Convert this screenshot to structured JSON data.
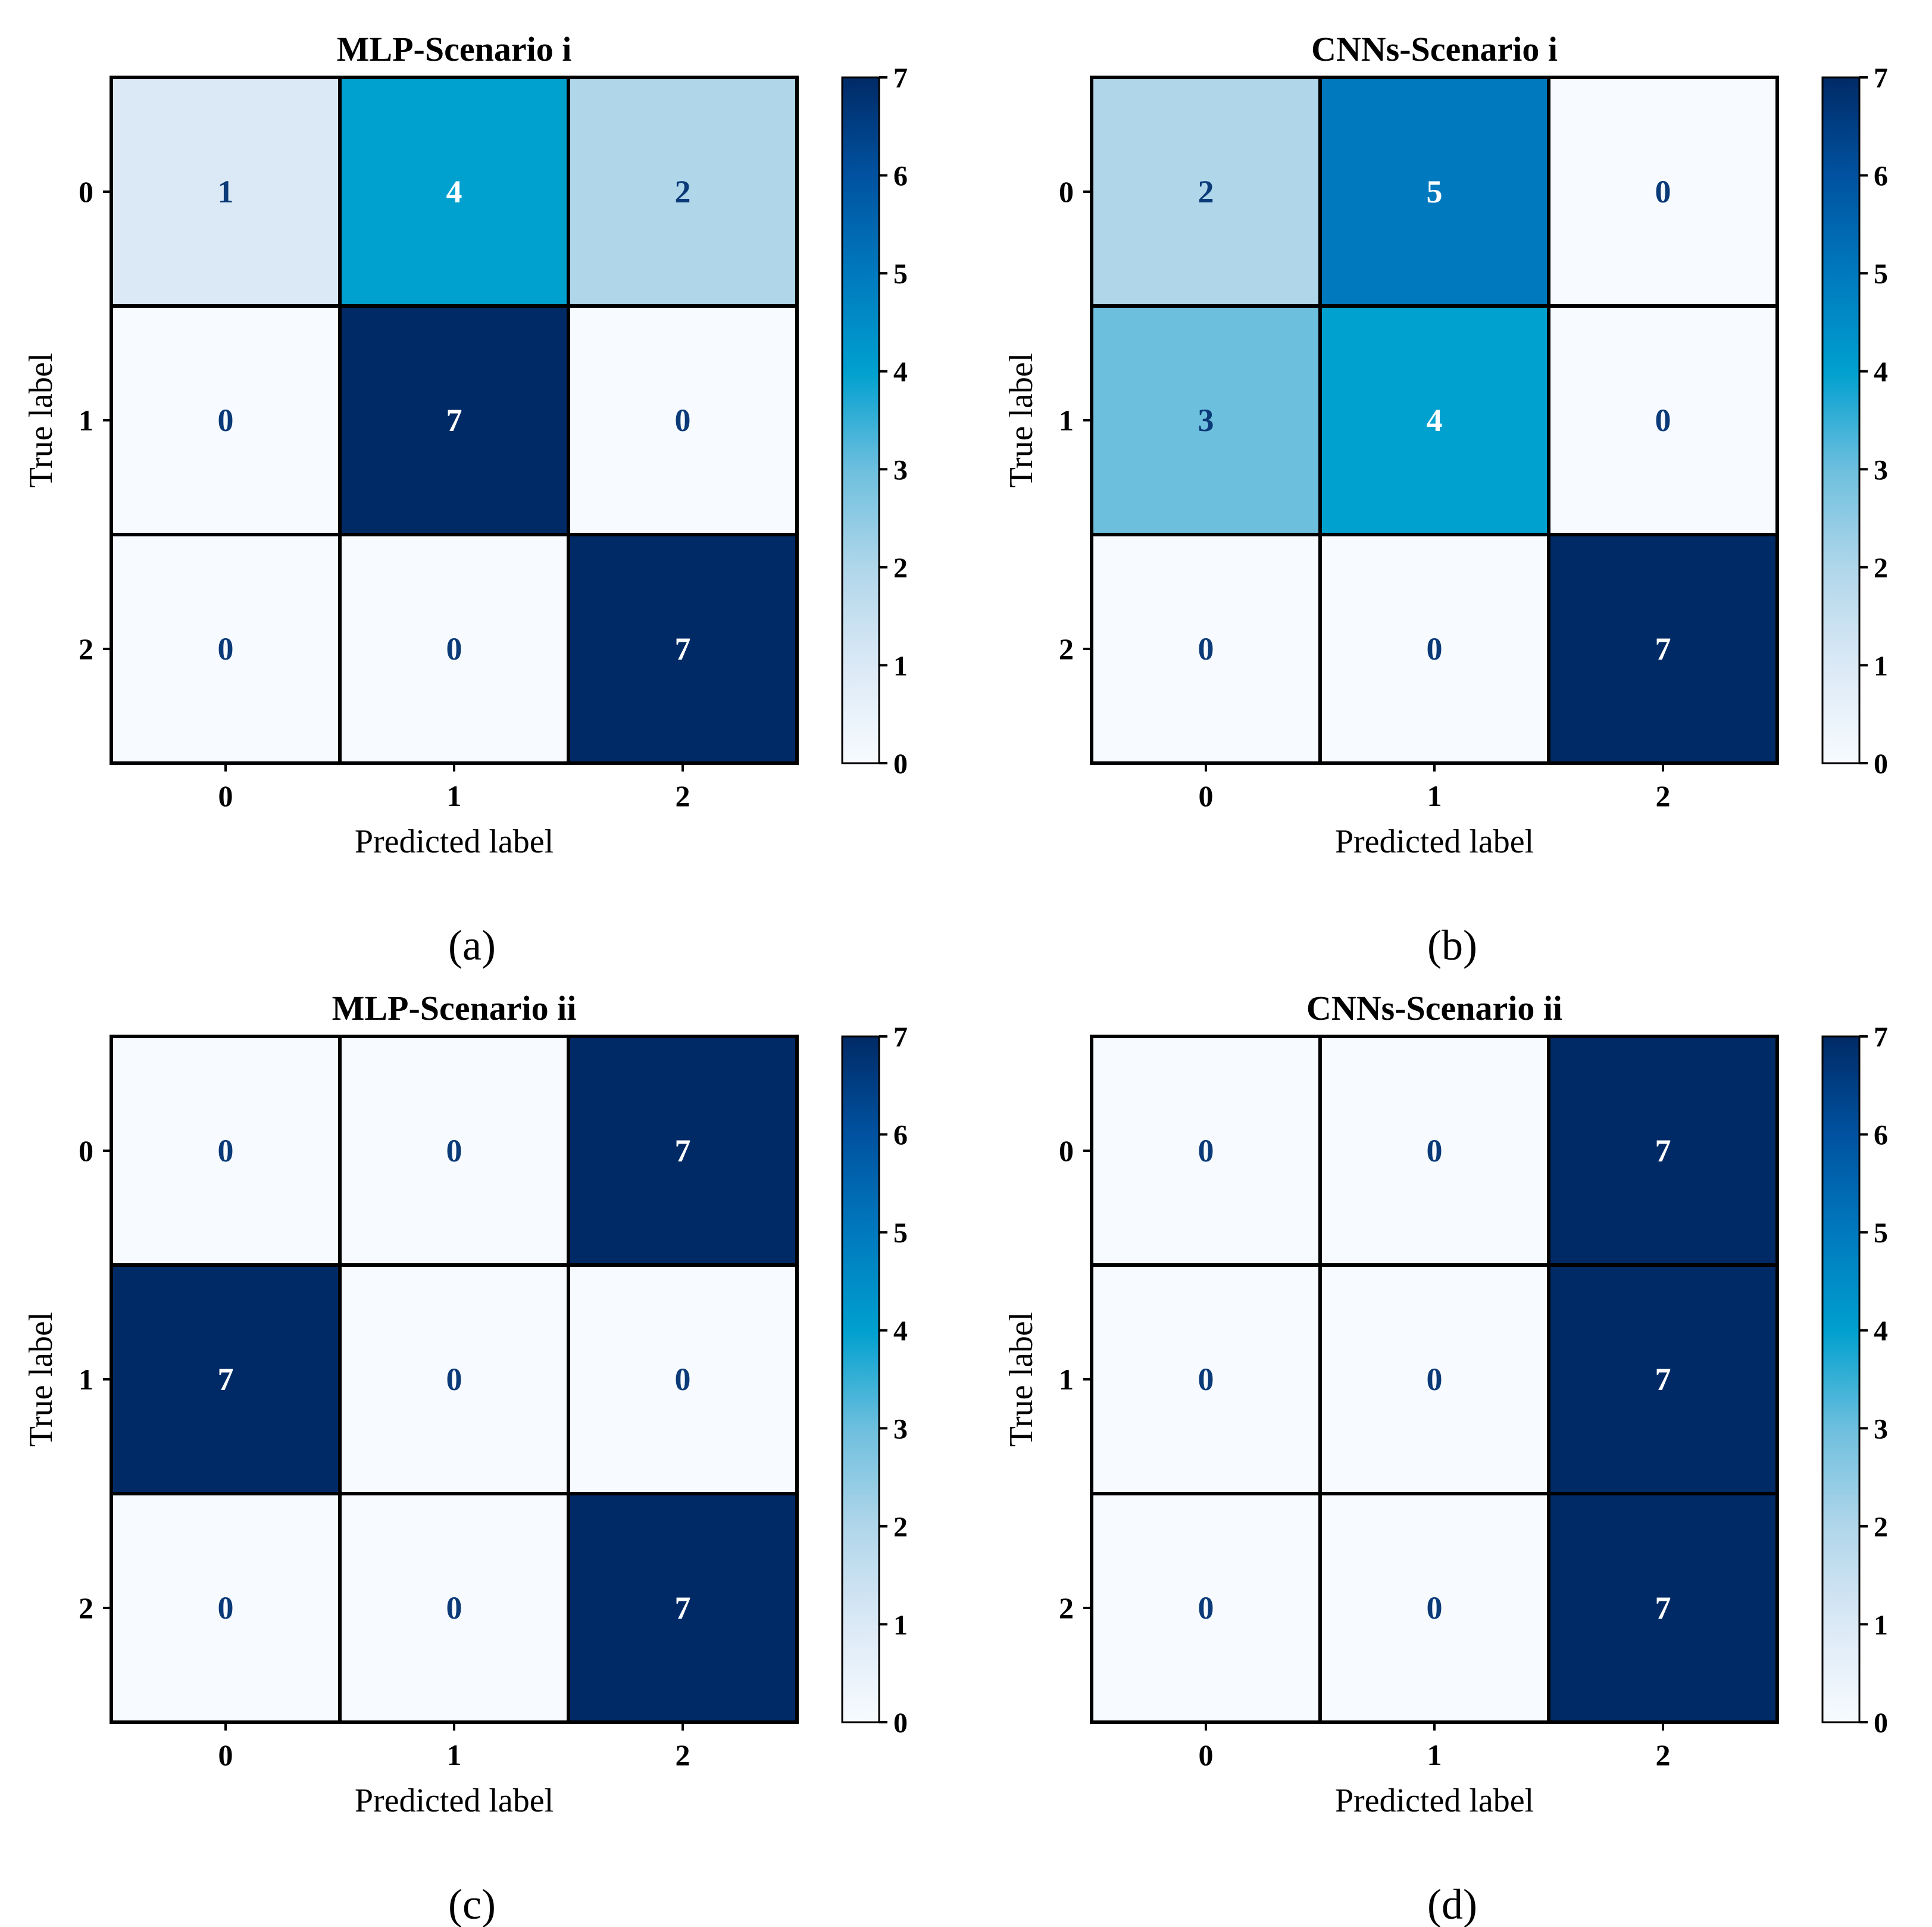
{
  "colorscale": {
    "name": "Blues",
    "stops": [
      "#f7fbff",
      "#dbe9f6",
      "#b0d6ea",
      "#6dbfde",
      "#00a0cf",
      "#0079be",
      "#0052a0",
      "#002a66"
    ],
    "text_light": "#ffffff",
    "text_dark": "#0b3a78",
    "grid_color": "#000000"
  },
  "chart_data": [
    {
      "type": "heatmap",
      "panel_label": "(a)",
      "title": "MLP-Scenario i",
      "xlabel": "Predicted label",
      "ylabel": "True label",
      "x_categories": [
        "0",
        "1",
        "2"
      ],
      "y_categories": [
        "0",
        "1",
        "2"
      ],
      "values": [
        [
          1,
          4,
          2
        ],
        [
          0,
          7,
          0
        ],
        [
          0,
          0,
          7
        ]
      ],
      "colorbar": {
        "min": 0,
        "max": 7,
        "ticks": [
          "0",
          "1",
          "2",
          "3",
          "4",
          "5",
          "6",
          "7"
        ]
      }
    },
    {
      "type": "heatmap",
      "panel_label": "(b)",
      "title": "CNNs-Scenario i",
      "xlabel": "Predicted label",
      "ylabel": "True label",
      "x_categories": [
        "0",
        "1",
        "2"
      ],
      "y_categories": [
        "0",
        "1",
        "2"
      ],
      "values": [
        [
          2,
          5,
          0
        ],
        [
          3,
          4,
          0
        ],
        [
          0,
          0,
          7
        ]
      ],
      "colorbar": {
        "min": 0,
        "max": 7,
        "ticks": [
          "0",
          "1",
          "2",
          "3",
          "4",
          "5",
          "6",
          "7"
        ]
      }
    },
    {
      "type": "heatmap",
      "panel_label": "(c)",
      "title": "MLP-Scenario ii",
      "xlabel": "Predicted label",
      "ylabel": "True label",
      "x_categories": [
        "0",
        "1",
        "2"
      ],
      "y_categories": [
        "0",
        "1",
        "2"
      ],
      "values": [
        [
          0,
          0,
          7
        ],
        [
          7,
          0,
          0
        ],
        [
          0,
          0,
          7
        ]
      ],
      "colorbar": {
        "min": 0,
        "max": 7,
        "ticks": [
          "0",
          "1",
          "2",
          "3",
          "4",
          "5",
          "6",
          "7"
        ]
      }
    },
    {
      "type": "heatmap",
      "panel_label": "(d)",
      "title": "CNNs-Scenario ii",
      "xlabel": "Predicted label",
      "ylabel": "True label",
      "x_categories": [
        "0",
        "1",
        "2"
      ],
      "y_categories": [
        "0",
        "1",
        "2"
      ],
      "values": [
        [
          0,
          0,
          7
        ],
        [
          0,
          0,
          7
        ],
        [
          0,
          0,
          7
        ]
      ],
      "colorbar": {
        "min": 0,
        "max": 7,
        "ticks": [
          "0",
          "1",
          "2",
          "3",
          "4",
          "5",
          "6",
          "7"
        ]
      }
    }
  ]
}
